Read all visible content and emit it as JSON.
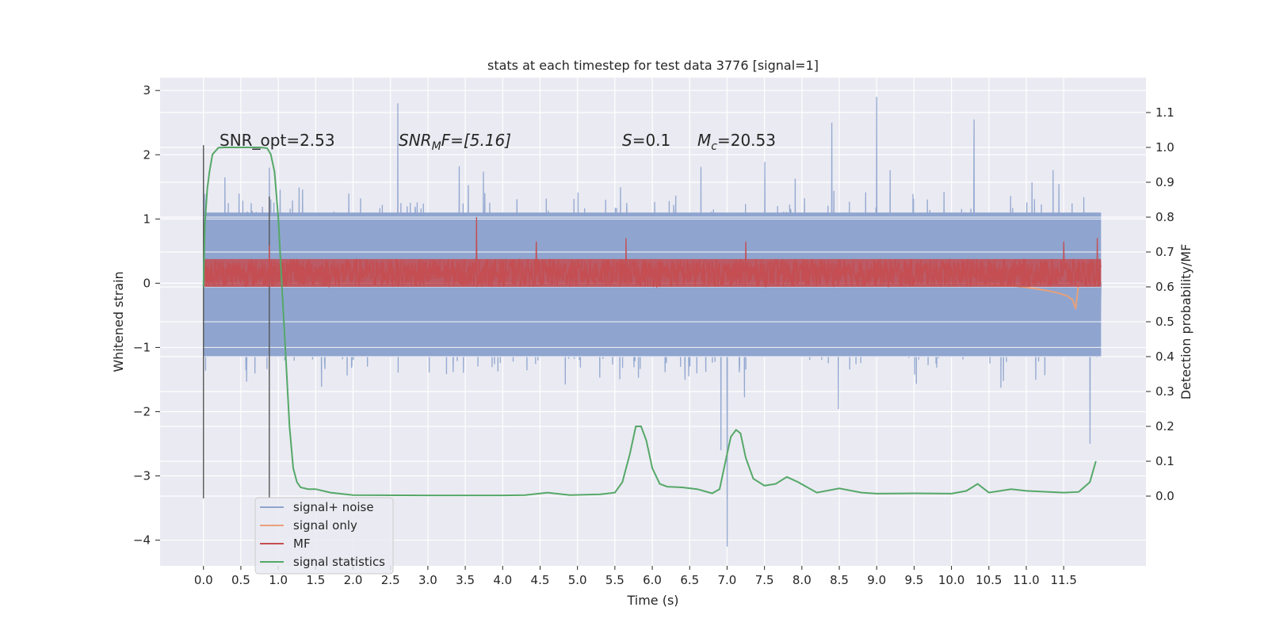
{
  "chart_data": {
    "type": "line",
    "title": "stats at each timestep for test data 3776 [signal=1]",
    "xlabel": "Time (s)",
    "ylabel": "Whitened strain",
    "ylabel_right": "Detection probability/MF",
    "xlim": [
      -0.58,
      12.6
    ],
    "ylim": [
      -4.4,
      3.2
    ],
    "ylim_right": [
      -0.2,
      1.2
    ],
    "x_ticks": [
      0.0,
      0.5,
      1.0,
      1.5,
      2.0,
      2.5,
      3.0,
      3.5,
      4.0,
      4.5,
      5.0,
      5.5,
      6.0,
      6.5,
      7.0,
      7.5,
      8.0,
      8.5,
      9.0,
      9.5,
      10.0,
      10.5,
      11.0,
      11.5
    ],
    "x_tick_labels": [
      "0.0",
      "0.5",
      "1.0",
      "1.5",
      "2.0",
      "2.5",
      "3.0",
      "3.5",
      "4.0",
      "4.5",
      "5.0",
      "5.5",
      "6.0",
      "6.5",
      "7.0",
      "7.5",
      "8.0",
      "8.5",
      "9.0",
      "9.5",
      "10.0",
      "10.5",
      "11.0",
      "11.5"
    ],
    "y_ticks": [
      3,
      2,
      1,
      0,
      -1,
      -2,
      -3,
      -4
    ],
    "y_tick_labels": [
      "3",
      "2",
      "1",
      "0",
      "−1",
      "−2",
      "−3",
      "−4"
    ],
    "y_right_ticks": [
      1.1,
      1.0,
      0.9,
      0.8,
      0.7,
      0.6,
      0.5,
      0.4,
      0.3,
      0.2,
      0.1,
      0.0
    ],
    "y_right_tick_labels": [
      "1.1",
      "1.0",
      "0.9",
      "0.8",
      "0.7",
      "0.6",
      "0.5",
      "0.4",
      "0.3",
      "0.2",
      "0.1",
      "0.0"
    ],
    "grid": true,
    "legend_position": "lower-left",
    "annotations": {
      "snr_opt": "SNR_opt=2.53",
      "snr_mf_main": "SNR",
      "snr_mf_sub": "M",
      "snr_mf_rest": "F=[5.16]",
      "s_main": "S",
      "s_rest": "=0.1",
      "mc_main": "M",
      "mc_sub": "c",
      "mc_rest": "=20.53"
    },
    "series": [
      {
        "name": "signal+ noise",
        "color": "#8fa5cf",
        "axis": "left",
        "x_range": [
          0.0,
          12.0
        ],
        "envelope_upper": 1.1,
        "envelope_lower": -1.15,
        "typical_max": 2.2,
        "typical_min": -2.5,
        "spikes": [
          {
            "x": 0.0,
            "y": 2.1
          },
          {
            "x": 0.88,
            "y": 1.8
          },
          {
            "x": 2.6,
            "y": 2.8
          },
          {
            "x": 6.92,
            "y": -2.6
          },
          {
            "x": 7.0,
            "y": -4.1
          },
          {
            "x": 8.4,
            "y": 2.5
          },
          {
            "x": 9.0,
            "y": 2.9
          },
          {
            "x": 10.3,
            "y": 2.55
          },
          {
            "x": 11.85,
            "y": -2.5
          }
        ]
      },
      {
        "name": "signal only",
        "color": "#e8a07a",
        "axis": "left",
        "x": [
          10.2,
          10.6,
          10.9,
          11.1,
          11.3,
          11.45,
          11.55,
          11.62,
          11.66,
          11.7
        ],
        "y": [
          0.0,
          -0.02,
          -0.05,
          -0.08,
          -0.12,
          -0.16,
          -0.2,
          -0.26,
          -0.4,
          0.0
        ]
      },
      {
        "name": "MF",
        "color": "#c44e52",
        "axis": "right",
        "x_range": [
          0.0,
          12.0
        ],
        "band_upper": 0.68,
        "band_lower": 0.6,
        "spikes": [
          {
            "x": 0.88,
            "y": 0.72
          },
          {
            "x": 1.25,
            "y": 0.68
          },
          {
            "x": 3.65,
            "y": 0.8
          },
          {
            "x": 4.45,
            "y": 0.73
          },
          {
            "x": 5.65,
            "y": 0.74
          },
          {
            "x": 7.25,
            "y": 0.73
          },
          {
            "x": 11.5,
            "y": 0.73
          },
          {
            "x": 11.95,
            "y": 0.74
          }
        ]
      },
      {
        "name": "signal statistics",
        "color": "#55a868",
        "axis": "right",
        "x": [
          0.0,
          0.02,
          0.05,
          0.08,
          0.12,
          0.2,
          0.3,
          0.5,
          0.75,
          0.85,
          0.9,
          0.95,
          1.0,
          1.05,
          1.1,
          1.15,
          1.2,
          1.25,
          1.3,
          1.4,
          1.5,
          1.7,
          2.0,
          3.0,
          4.0,
          4.3,
          4.6,
          4.9,
          5.3,
          5.5,
          5.6,
          5.7,
          5.78,
          5.85,
          5.92,
          6.0,
          6.1,
          6.2,
          6.4,
          6.6,
          6.8,
          6.9,
          7.0,
          7.05,
          7.12,
          7.18,
          7.25,
          7.35,
          7.5,
          7.65,
          7.8,
          7.95,
          8.2,
          8.5,
          8.8,
          9.0,
          9.5,
          10.0,
          10.2,
          10.35,
          10.5,
          10.8,
          11.0,
          11.5,
          11.7,
          11.85,
          11.93
        ],
        "y": [
          0.6,
          0.78,
          0.88,
          0.93,
          0.98,
          0.999,
          1.0,
          1.0,
          1.0,
          0.998,
          0.98,
          0.93,
          0.8,
          0.6,
          0.4,
          0.2,
          0.08,
          0.04,
          0.025,
          0.02,
          0.02,
          0.01,
          0.003,
          0.002,
          0.002,
          0.003,
          0.01,
          0.003,
          0.005,
          0.01,
          0.04,
          0.12,
          0.2,
          0.2,
          0.16,
          0.08,
          0.035,
          0.027,
          0.025,
          0.02,
          0.008,
          0.02,
          0.12,
          0.17,
          0.19,
          0.18,
          0.11,
          0.05,
          0.03,
          0.035,
          0.055,
          0.04,
          0.01,
          0.022,
          0.01,
          0.007,
          0.008,
          0.007,
          0.015,
          0.035,
          0.01,
          0.02,
          0.015,
          0.01,
          0.012,
          0.04,
          0.1
        ]
      }
    ]
  }
}
